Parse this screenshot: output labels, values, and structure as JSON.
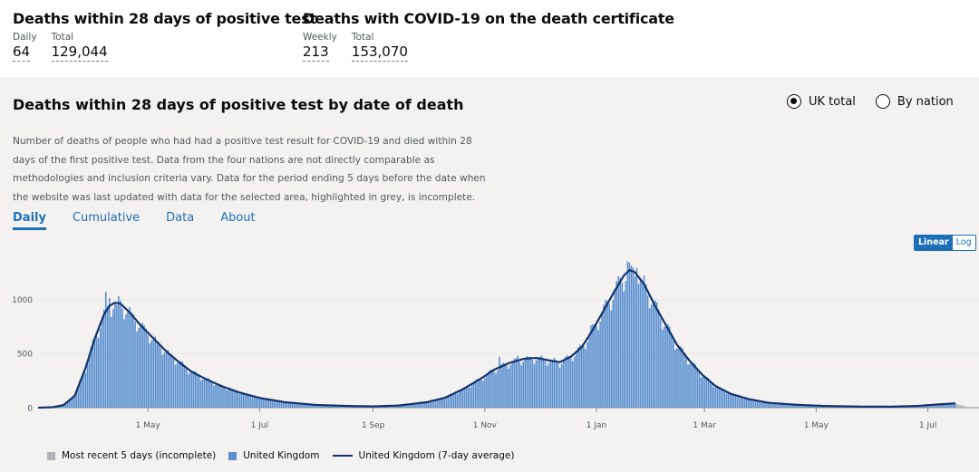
{
  "headline_a": {
    "title": "Deaths within 28 days of positive test",
    "metrics": [
      {
        "label": "Daily",
        "value": "64"
      },
      {
        "label": "Total",
        "value": "129,044"
      }
    ]
  },
  "headline_b": {
    "title": "Deaths with COVID-19 on the death certificate",
    "metrics": [
      {
        "label": "Weekly",
        "value": "213"
      },
      {
        "label": "Total",
        "value": "153,070"
      }
    ]
  },
  "card": {
    "title": "Deaths within 28 days of positive test by date of death",
    "description": "Number of deaths of people who had had a positive test result for COVID-19 and died within 28 days of the first positive test. Data from the four nations are not directly comparable as methodologies and inclusion criteria vary. Data for the period ending 5 days before the date when the website was last updated with data for the selected area, highlighted in grey, is incomplete.",
    "radios": [
      {
        "label": "UK total",
        "selected": true
      },
      {
        "label": "By nation",
        "selected": false
      }
    ],
    "tabs": [
      {
        "label": "Daily",
        "active": true
      },
      {
        "label": "Cumulative",
        "active": false
      },
      {
        "label": "Data",
        "active": false
      },
      {
        "label": "About",
        "active": false
      }
    ],
    "scale": {
      "linear": "Linear",
      "log": "Log",
      "selected": "Linear"
    }
  },
  "colors": {
    "bar": "#5b8fcf",
    "bar_incomplete": "#b1b4b6",
    "line": "#12336b",
    "grid": "#e8e8e8",
    "axis": "#8a8a8a"
  },
  "chart_data": {
    "type": "bar",
    "x_start": "2020-03-02",
    "x_end": "2021-07-21",
    "ylim": [
      0,
      1380
    ],
    "yticks": [
      0,
      500,
      1000
    ],
    "xticks": [
      {
        "label": "1 May",
        "date": "2020-05-01"
      },
      {
        "label": "1 Jul",
        "date": "2020-07-01"
      },
      {
        "label": "1 Sep",
        "date": "2020-09-01"
      },
      {
        "label": "1 Nov",
        "date": "2020-11-01"
      },
      {
        "label": "1 Jan",
        "date": "2021-01-01"
      },
      {
        "label": "1 Mar",
        "date": "2021-03-01"
      },
      {
        "label": "1 May",
        "date": "2021-05-01"
      },
      {
        "label": "1 Jul",
        "date": "2021-07-01"
      }
    ],
    "incomplete_days": 5,
    "series": [
      {
        "name": "United Kingdom (7-day average)",
        "points": [
          [
            "2020-03-02",
            0
          ],
          [
            "2020-03-10",
            4
          ],
          [
            "2020-03-16",
            25
          ],
          [
            "2020-03-22",
            110
          ],
          [
            "2020-03-28",
            370
          ],
          [
            "2020-04-02",
            640
          ],
          [
            "2020-04-07",
            860
          ],
          [
            "2020-04-10",
            940
          ],
          [
            "2020-04-13",
            970
          ],
          [
            "2020-04-16",
            960
          ],
          [
            "2020-04-21",
            880
          ],
          [
            "2020-04-27",
            760
          ],
          [
            "2020-05-04",
            640
          ],
          [
            "2020-05-11",
            520
          ],
          [
            "2020-05-18",
            420
          ],
          [
            "2020-05-25",
            330
          ],
          [
            "2020-06-01",
            270
          ],
          [
            "2020-06-10",
            200
          ],
          [
            "2020-06-20",
            140
          ],
          [
            "2020-07-01",
            90
          ],
          [
            "2020-07-15",
            50
          ],
          [
            "2020-08-01",
            25
          ],
          [
            "2020-08-20",
            15
          ],
          [
            "2020-09-01",
            12
          ],
          [
            "2020-09-15",
            20
          ],
          [
            "2020-09-30",
            50
          ],
          [
            "2020-10-10",
            90
          ],
          [
            "2020-10-20",
            170
          ],
          [
            "2020-10-30",
            270
          ],
          [
            "2020-11-06",
            350
          ],
          [
            "2020-11-14",
            410
          ],
          [
            "2020-11-22",
            450
          ],
          [
            "2020-11-29",
            460
          ],
          [
            "2020-12-05",
            440
          ],
          [
            "2020-12-12",
            420
          ],
          [
            "2020-12-18",
            470
          ],
          [
            "2020-12-24",
            560
          ],
          [
            "2020-12-30",
            720
          ],
          [
            "2021-01-05",
            900
          ],
          [
            "2021-01-11",
            1080
          ],
          [
            "2021-01-16",
            1220
          ],
          [
            "2021-01-19",
            1270
          ],
          [
            "2021-01-22",
            1250
          ],
          [
            "2021-01-27",
            1140
          ],
          [
            "2021-02-02",
            940
          ],
          [
            "2021-02-08",
            760
          ],
          [
            "2021-02-14",
            580
          ],
          [
            "2021-02-21",
            430
          ],
          [
            "2021-02-28",
            300
          ],
          [
            "2021-03-07",
            200
          ],
          [
            "2021-03-15",
            130
          ],
          [
            "2021-03-25",
            80
          ],
          [
            "2021-04-05",
            45
          ],
          [
            "2021-04-20",
            27
          ],
          [
            "2021-05-05",
            16
          ],
          [
            "2021-05-25",
            10
          ],
          [
            "2021-06-10",
            9
          ],
          [
            "2021-06-25",
            16
          ],
          [
            "2021-07-05",
            28
          ],
          [
            "2021-07-16",
            40
          ]
        ]
      },
      {
        "name": "United Kingdom"
      },
      {
        "name": "Most recent 5 days (incomplete)"
      }
    ],
    "spikes": [
      [
        "2020-04-08",
        1070
      ],
      [
        "2020-04-10",
        1010
      ],
      [
        "2020-04-14",
        950
      ],
      [
        "2020-04-22",
        880
      ],
      [
        "2020-04-29",
        760
      ],
      [
        "2020-05-06",
        600
      ],
      [
        "2020-05-13",
        480
      ],
      [
        "2020-06-02",
        260
      ],
      [
        "2020-11-09",
        470
      ],
      [
        "2020-11-19",
        480
      ],
      [
        "2020-11-25",
        470
      ],
      [
        "2020-12-01",
        470
      ],
      [
        "2020-12-08",
        440
      ],
      [
        "2020-12-29",
        760
      ],
      [
        "2021-01-18",
        1350
      ],
      [
        "2021-01-20",
        1310
      ],
      [
        "2021-01-23",
        1290
      ],
      [
        "2021-01-26",
        1160
      ]
    ]
  }
}
